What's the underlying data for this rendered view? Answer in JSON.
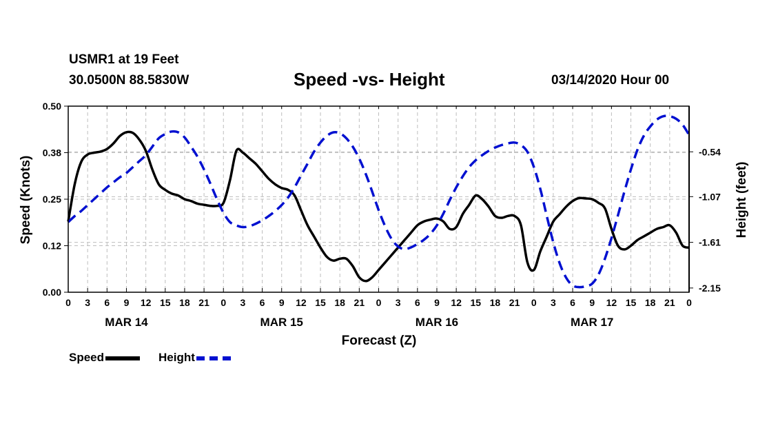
{
  "header": {
    "station": "USMR1 at 19 Feet",
    "coords": "30.0500N 88.5830W",
    "title": "Speed -vs- Height",
    "timestamp": "03/14/2020 Hour 00"
  },
  "legend": {
    "speed_label": "Speed",
    "height_label": "Height"
  },
  "colors": {
    "speed": "#000000",
    "height": "#0010d0",
    "grid": "#bdbdbd"
  },
  "chart_data": {
    "type": "line",
    "title": "Speed -vs- Height",
    "xlabel": "Forecast (Z)",
    "ylabel": "Speed (Knots)",
    "y2label": "Height (feet)",
    "xlim": [
      0,
      96
    ],
    "ylim": [
      0,
      0.5
    ],
    "y2lim": [
      -2.2,
      0
    ]
  }
}
